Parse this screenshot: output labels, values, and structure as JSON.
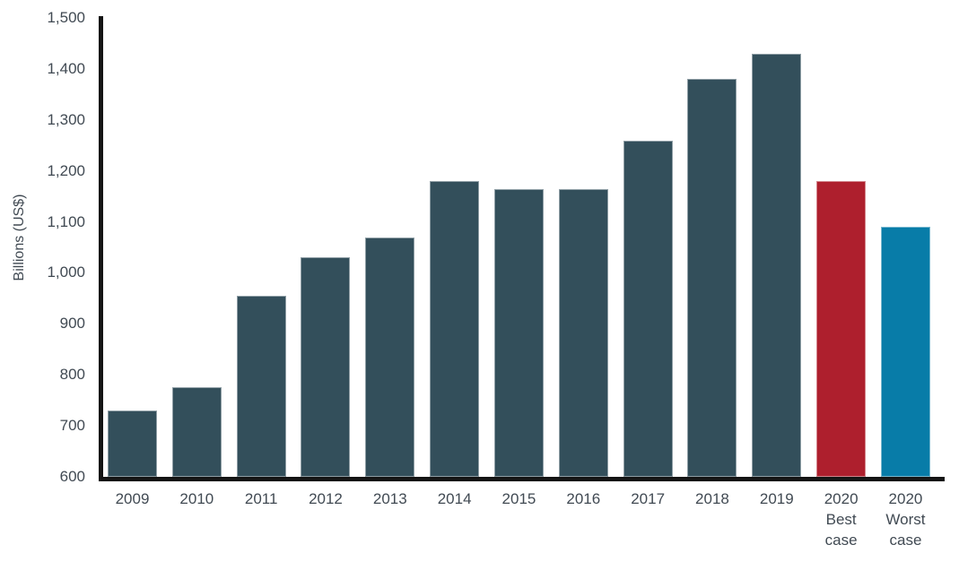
{
  "chart_data": {
    "type": "bar",
    "title": "",
    "xlabel": "",
    "ylabel": "Billions (US$)",
    "categories": [
      "2009",
      "2010",
      "2011",
      "2012",
      "2013",
      "2014",
      "2015",
      "2016",
      "2017",
      "2018",
      "2019",
      "2020 Best case",
      "2020 Worst case"
    ],
    "values": [
      730,
      775,
      955,
      1030,
      1070,
      1180,
      1165,
      1165,
      1260,
      1380,
      1430,
      1180,
      1090
    ],
    "bar_colors": [
      "#334F5B",
      "#334F5B",
      "#334F5B",
      "#334F5B",
      "#334F5B",
      "#334F5B",
      "#334F5B",
      "#334F5B",
      "#334F5B",
      "#334F5B",
      "#334F5B",
      "#AE1F2D",
      "#087CA8"
    ],
    "ylim": [
      600,
      1500
    ],
    "ytick_values": [
      600,
      700,
      800,
      900,
      1000,
      1100,
      1200,
      1300,
      1400,
      1500
    ],
    "ytick_labels": [
      "600",
      "700",
      "800",
      "900",
      "1,000",
      "1,100",
      "1,200",
      "1,300",
      "1,400",
      "1,500"
    ],
    "grid": false,
    "legend": "none",
    "axis_color": "#141414",
    "text_color": "#414A53",
    "background": "#FFFFFF",
    "bar_border_color": "rgba(255,255,255,0.45)"
  }
}
